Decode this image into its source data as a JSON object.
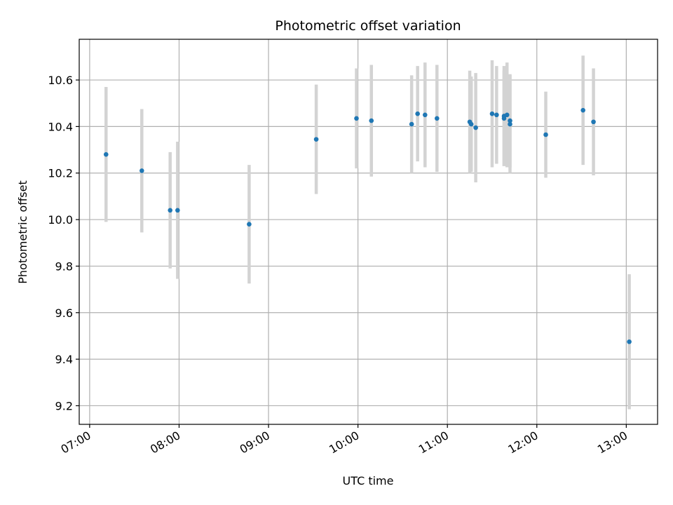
{
  "chart_data": {
    "type": "scatter",
    "title": "Photometric offset variation",
    "xlabel": "UTC time",
    "ylabel": "Photometric offset",
    "x_tick_labels": [
      "07:00",
      "08:00",
      "09:00",
      "10:00",
      "11:00",
      "12:00",
      "13:00"
    ],
    "y_tick_labels": [
      "9.2",
      "9.4",
      "9.6",
      "9.8",
      "10.0",
      "10.2",
      "10.4",
      "10.6"
    ],
    "ylim": [
      9.12,
      10.775
    ],
    "xlim": [
      "06:53",
      "13:21"
    ],
    "grid": true,
    "colors": {
      "point": "#1f77b4",
      "errorbar": "#d3d3d3",
      "grid": "#b0b0b0"
    },
    "points": [
      {
        "x": "07:11",
        "y": 10.28,
        "err": 0.29
      },
      {
        "x": "07:35",
        "y": 10.21,
        "err": 0.265
      },
      {
        "x": "07:54",
        "y": 10.04,
        "err": 0.25
      },
      {
        "x": "07:59",
        "y": 10.04,
        "err": 0.295
      },
      {
        "x": "08:47",
        "y": 9.98,
        "err": 0.255
      },
      {
        "x": "09:32",
        "y": 10.345,
        "err": 0.235
      },
      {
        "x": "09:59",
        "y": 10.435,
        "err": 0.215
      },
      {
        "x": "10:09",
        "y": 10.425,
        "err": 0.24
      },
      {
        "x": "10:36",
        "y": 10.41,
        "err": 0.21
      },
      {
        "x": "10:40",
        "y": 10.455,
        "err": 0.205
      },
      {
        "x": "10:45",
        "y": 10.45,
        "err": 0.225
      },
      {
        "x": "10:53",
        "y": 10.435,
        "err": 0.23
      },
      {
        "x": "11:15",
        "y": 10.42,
        "err": 0.22
      },
      {
        "x": "11:16",
        "y": 10.41,
        "err": 0.205
      },
      {
        "x": "11:19",
        "y": 10.395,
        "err": 0.235
      },
      {
        "x": "11:30",
        "y": 10.455,
        "err": 0.23
      },
      {
        "x": "11:33",
        "y": 10.45,
        "err": 0.21
      },
      {
        "x": "11:38",
        "y": 10.445,
        "err": 0.215
      },
      {
        "x": "11:38",
        "y": 10.435,
        "err": 0.205
      },
      {
        "x": "11:40",
        "y": 10.45,
        "err": 0.225
      },
      {
        "x": "11:42",
        "y": 10.425,
        "err": 0.2
      },
      {
        "x": "11:42",
        "y": 10.41,
        "err": 0.21
      },
      {
        "x": "12:06",
        "y": 10.365,
        "err": 0.185
      },
      {
        "x": "12:31",
        "y": 10.47,
        "err": 0.235
      },
      {
        "x": "12:38",
        "y": 10.42,
        "err": 0.23
      },
      {
        "x": "13:02",
        "y": 9.475,
        "err": 0.29
      }
    ]
  }
}
